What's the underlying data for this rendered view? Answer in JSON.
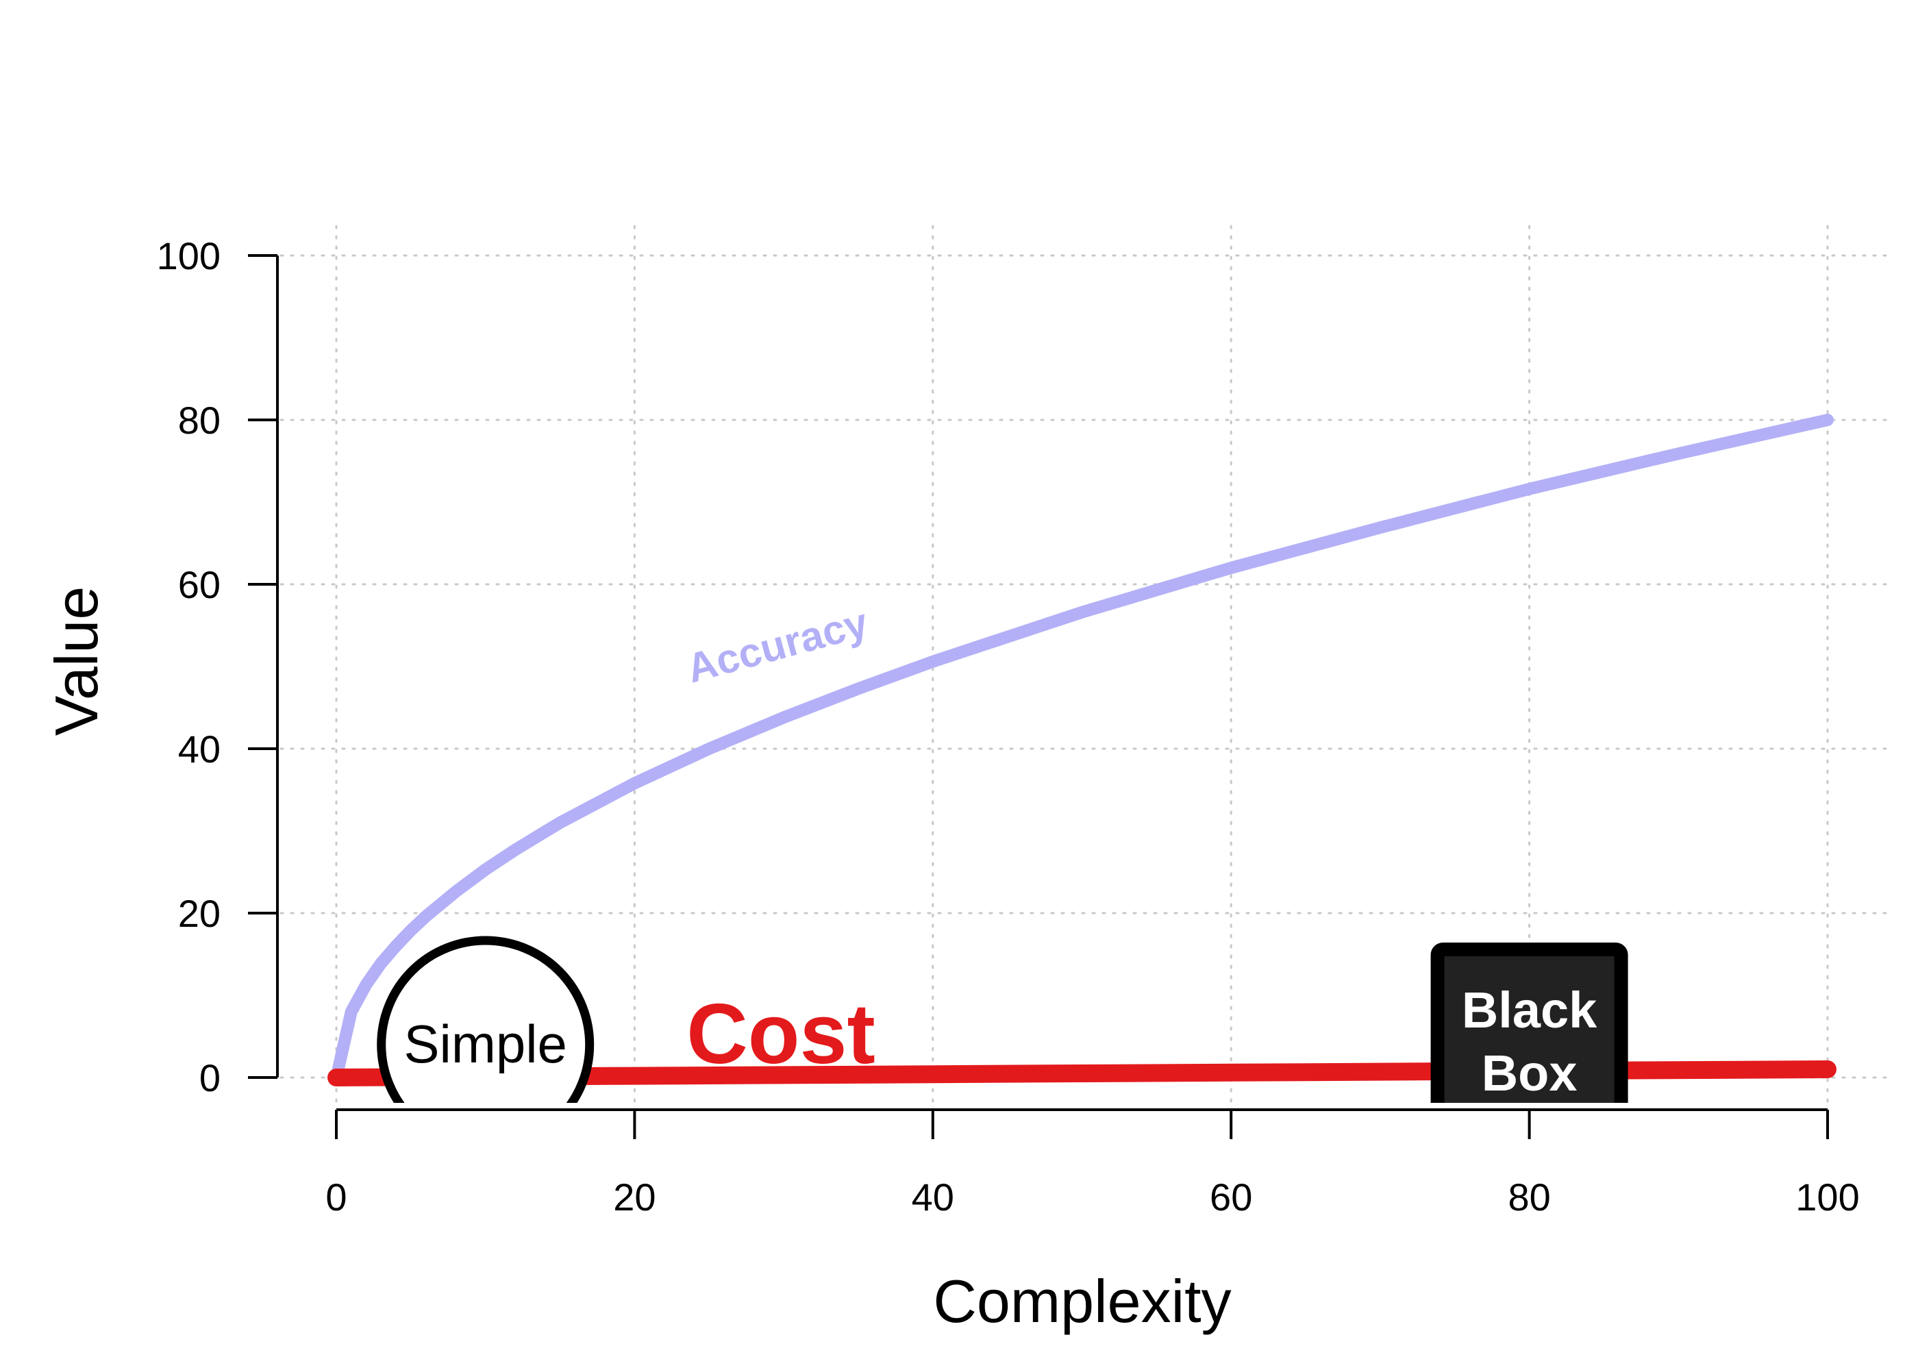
{
  "chart_data": {
    "type": "line",
    "xlabel": "Complexity",
    "ylabel": "Value",
    "xlim": [
      0,
      100
    ],
    "ylim": [
      0,
      100
    ],
    "x_ticks": [
      0,
      20,
      40,
      60,
      80,
      100
    ],
    "y_ticks": [
      0,
      20,
      40,
      60,
      80,
      100
    ],
    "grid": true,
    "series": [
      {
        "name": "Accuracy",
        "color": "#b3b0f7",
        "x": [
          0,
          1,
          2,
          3,
          4,
          5,
          6,
          8,
          10,
          12,
          15,
          20,
          25,
          30,
          35,
          40,
          50,
          60,
          70,
          80,
          90,
          100
        ],
        "y": [
          0,
          8,
          11.3,
          13.9,
          16,
          17.9,
          19.6,
          22.6,
          25.3,
          27.7,
          31,
          35.8,
          40,
          43.8,
          47.3,
          50.6,
          56.6,
          62,
          66.9,
          71.6,
          75.9,
          80
        ]
      },
      {
        "name": "Cost",
        "color": "#e31a1c",
        "x": [
          0,
          20,
          40,
          60,
          80,
          100
        ],
        "y": [
          0,
          0.2,
          0.4,
          0.6,
          0.8,
          1.0
        ]
      }
    ],
    "annotations": [
      {
        "text": "Accuracy",
        "style": "rotated-series-label"
      },
      {
        "text": "Cost",
        "style": "bold-series-label"
      },
      {
        "text": "Simple",
        "shape": "circle"
      },
      {
        "text": "Black Box",
        "lines": [
          "Black",
          "Box"
        ],
        "shape": "black-square"
      }
    ]
  }
}
